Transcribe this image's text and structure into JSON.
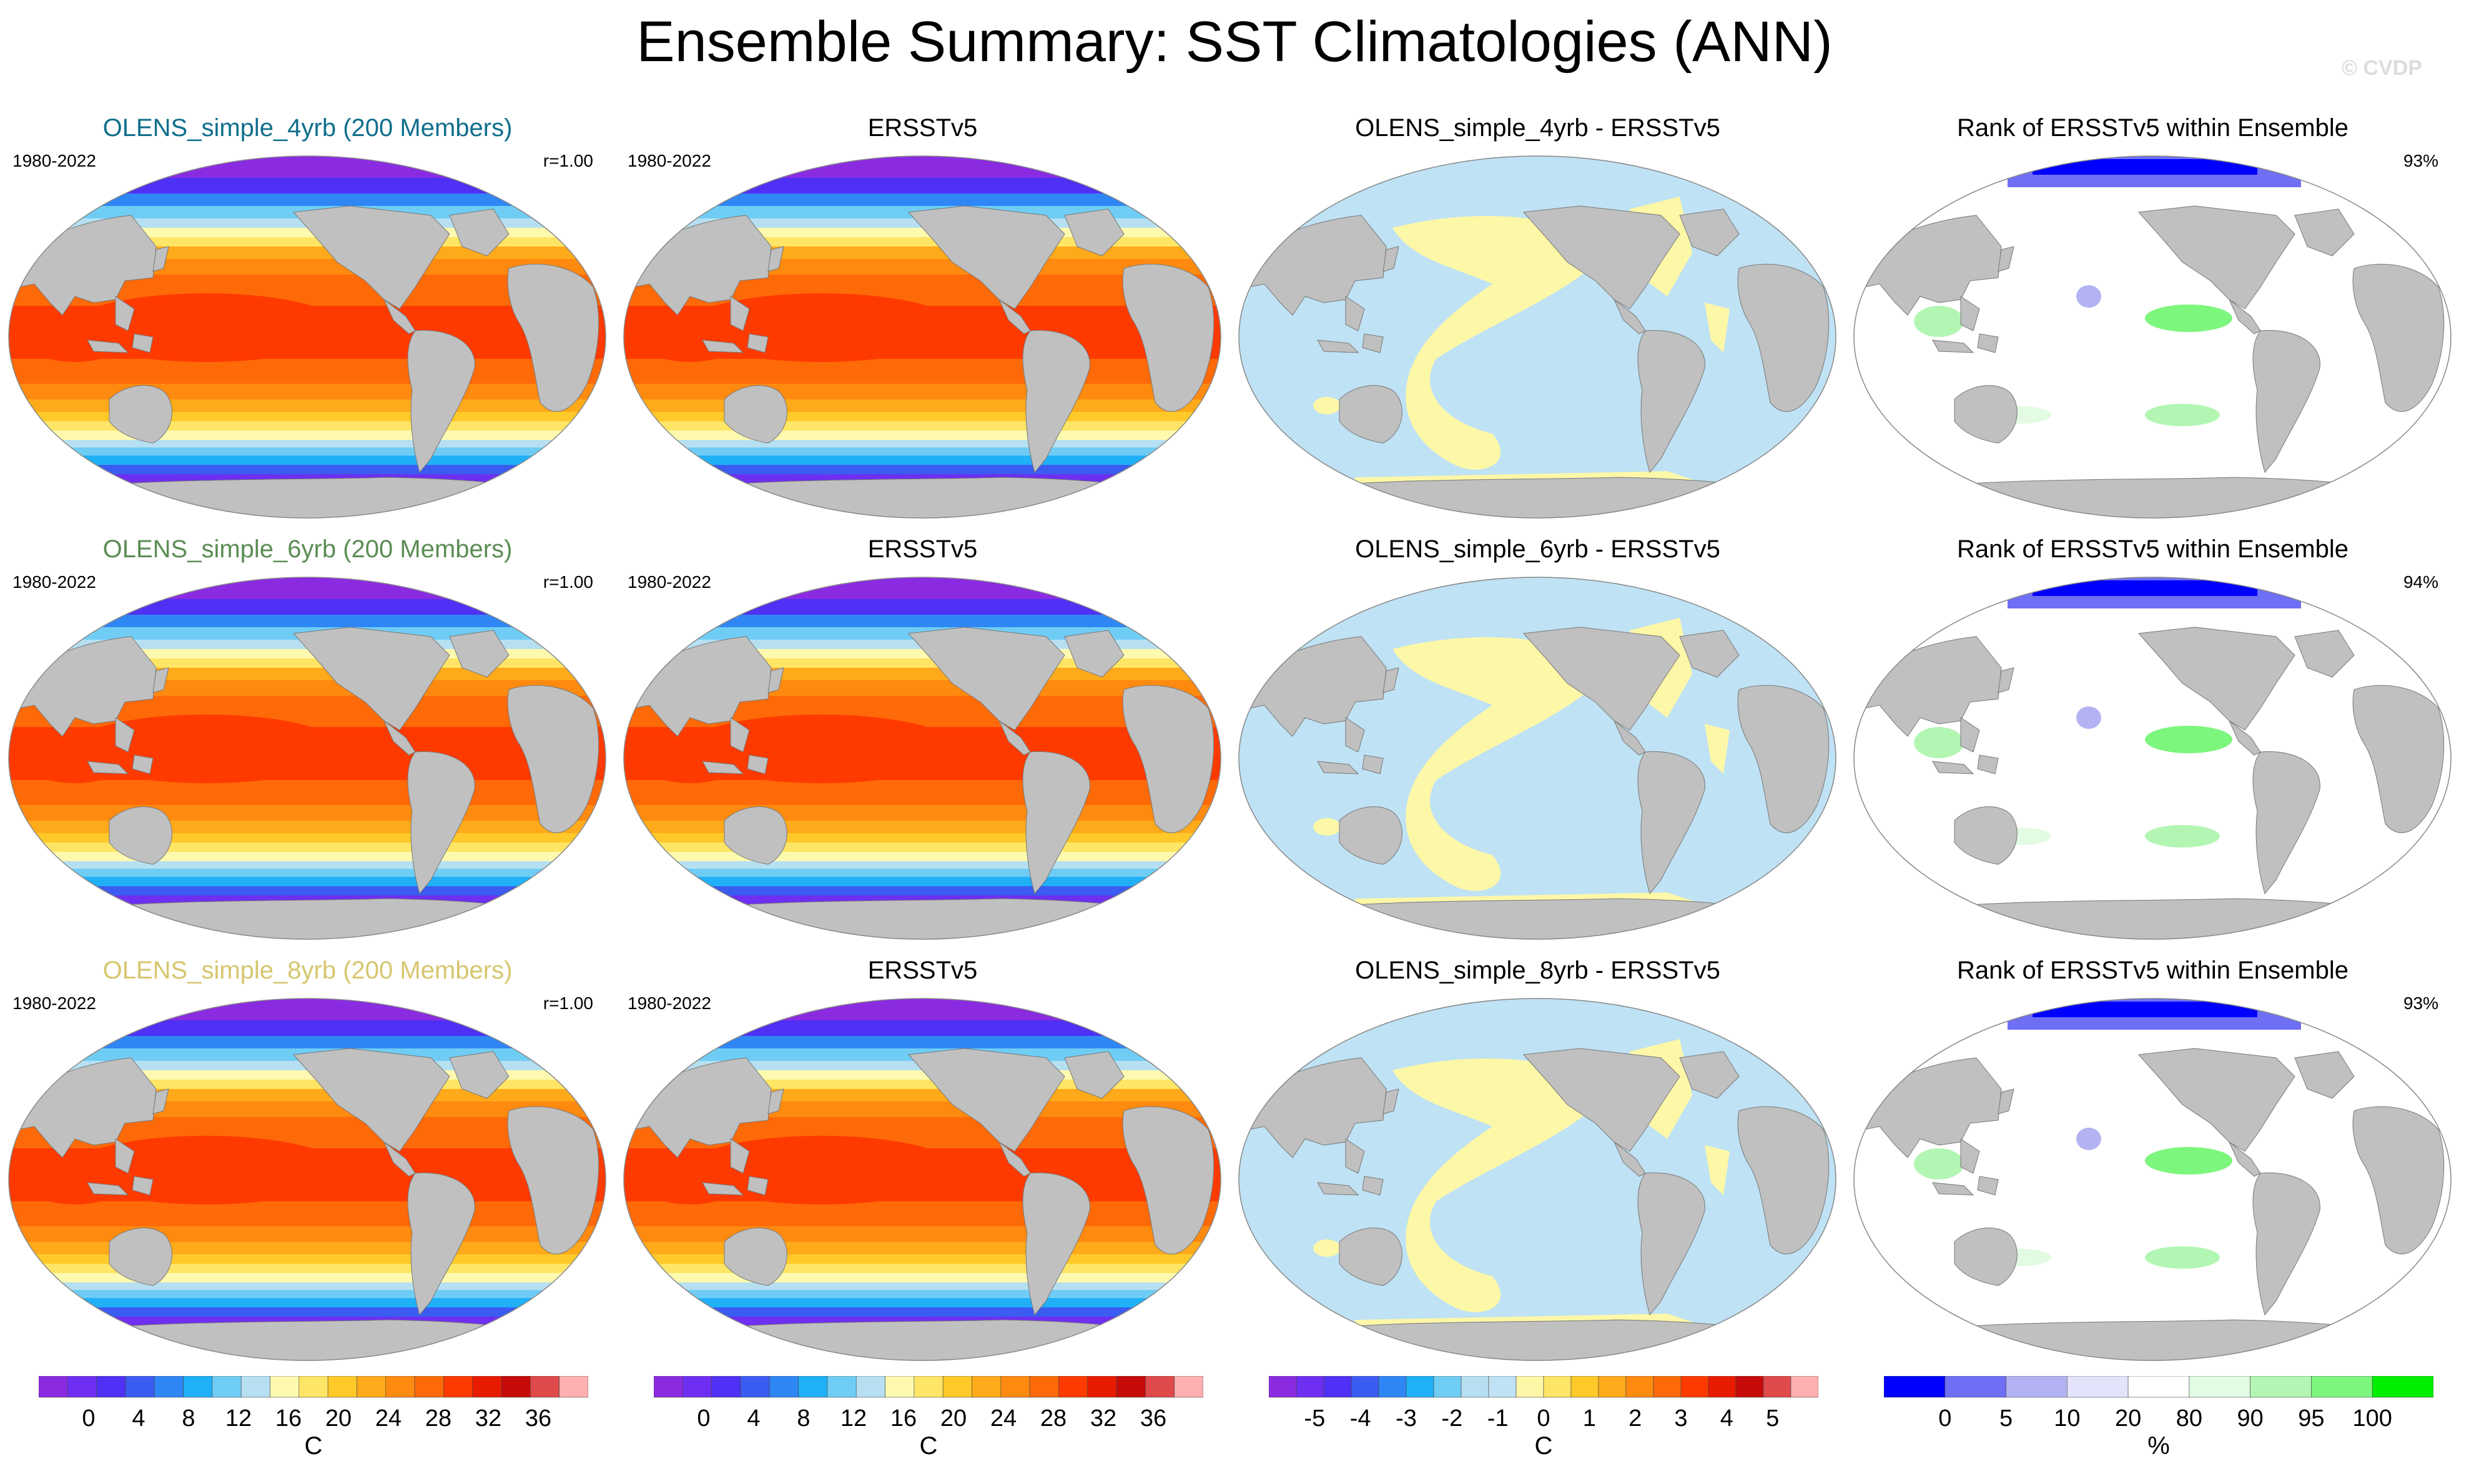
{
  "page": {
    "title": "Ensemble Summary: SST Climatologies (ANN)",
    "watermark": "© CVDP"
  },
  "rows": [
    {
      "ensemble": {
        "title": "OLENS_simple_4yrb (200 Members)",
        "title_color": "#0f6f8c",
        "period": "1980-2022",
        "corr": "r=1.00"
      },
      "obs": {
        "title": "ERSSTv5",
        "period": "1980-2022"
      },
      "diff": {
        "title": "OLENS_simple_4yrb - ERSSTv5"
      },
      "rank": {
        "title": "Rank of ERSSTv5 within Ensemble",
        "pct": "93%"
      }
    },
    {
      "ensemble": {
        "title": "OLENS_simple_6yrb (200 Members)",
        "title_color": "#5c8c55",
        "period": "1980-2022",
        "corr": "r=1.00"
      },
      "obs": {
        "title": "ERSSTv5",
        "period": "1980-2022"
      },
      "diff": {
        "title": "OLENS_simple_6yrb - ERSSTv5"
      },
      "rank": {
        "title": "Rank of ERSSTv5 within Ensemble",
        "pct": "94%"
      }
    },
    {
      "ensemble": {
        "title": "OLENS_simple_8yrb (200 Members)",
        "title_color": "#d6c66e",
        "period": "1980-2022",
        "corr": "r=1.00"
      },
      "obs": {
        "title": "ERSSTv5",
        "period": "1980-2022"
      },
      "diff": {
        "title": "OLENS_simple_8yrb - ERSSTv5"
      },
      "rank": {
        "title": "Rank of ERSSTv5 within Ensemble",
        "pct": "93%"
      }
    }
  ],
  "colors": {
    "land": "#c0c0c0",
    "ocean_empty": "#ffffff",
    "diff_negative": "#bfe2f4",
    "diff_positive": "#fdf7a8"
  },
  "colorbars": [
    {
      "unit": "C",
      "labels": [
        "0",
        "4",
        "8",
        "12",
        "16",
        "20",
        "24",
        "28",
        "32",
        "36"
      ],
      "colors": [
        "#8a2be2",
        "#6e2ff2",
        "#4f30f5",
        "#3a5cf0",
        "#2f86f5",
        "#1fb0f8",
        "#6fcdf5",
        "#b6e0f2",
        "#fdfab0",
        "#ffe566",
        "#ffc92a",
        "#ffaa1a",
        "#ff8a10",
        "#ff6a08",
        "#ff3a00",
        "#e81a00",
        "#c70a0a",
        "#e04a4a",
        "#ffb0b0"
      ]
    },
    {
      "unit": "C",
      "labels": [
        "0",
        "4",
        "8",
        "12",
        "16",
        "20",
        "24",
        "28",
        "32",
        "36"
      ],
      "colors": [
        "#8a2be2",
        "#6e2ff2",
        "#4f30f5",
        "#3a5cf0",
        "#2f86f5",
        "#1fb0f8",
        "#6fcdf5",
        "#b6e0f2",
        "#fdfab0",
        "#ffe566",
        "#ffc92a",
        "#ffaa1a",
        "#ff8a10",
        "#ff6a08",
        "#ff3a00",
        "#e81a00",
        "#c70a0a",
        "#e04a4a",
        "#ffb0b0"
      ]
    },
    {
      "unit": "C",
      "labels": [
        "-5",
        "-4",
        "-3",
        "-2",
        "-1",
        "0",
        "1",
        "2",
        "3",
        "4",
        "5"
      ],
      "colors": [
        "#8a2be2",
        "#6e2ff2",
        "#4f30f5",
        "#3a5cf0",
        "#2f86f5",
        "#1fb0f8",
        "#6fcdf5",
        "#b6e0f2",
        "#bfe2f4",
        "#fdf7a8",
        "#ffe566",
        "#ffc92a",
        "#ffaa1a",
        "#ff8a10",
        "#ff6a08",
        "#ff3a00",
        "#e81a00",
        "#c70a0a",
        "#e04a4a",
        "#ffb0b0"
      ]
    },
    {
      "unit": "%",
      "labels": [
        "0",
        "5",
        "10",
        "20",
        "80",
        "90",
        "95",
        "100"
      ],
      "colors": [
        "#0000ff",
        "#6f6ff5",
        "#b3b3f3",
        "#e3e3fb",
        "#ffffff",
        "#e2fbe2",
        "#b3f6b3",
        "#7df67d",
        "#00ee00"
      ]
    }
  ]
}
